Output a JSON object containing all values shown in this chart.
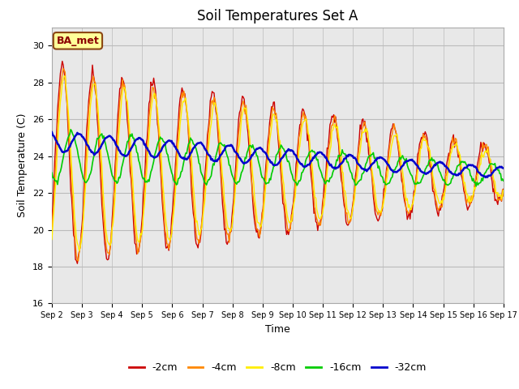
{
  "title": "Soil Temperatures Set A",
  "xlabel": "Time",
  "ylabel": "Soil Temperature (C)",
  "ylim": [
    16,
    31
  ],
  "annotation": "BA_met",
  "series_colors": [
    "#CC0000",
    "#FF8800",
    "#FFEE00",
    "#00CC00",
    "#0000CC"
  ],
  "series_labels": [
    "-2cm",
    "-4cm",
    "-8cm",
    "-16cm",
    "-32cm"
  ],
  "series_linewidths": [
    1.0,
    1.0,
    1.0,
    1.2,
    1.8
  ],
  "grid_color": "#bbbbbb",
  "figure_bg_color": "#ffffff",
  "plot_bg_color": "#e8e8e8",
  "n_points": 480,
  "start_day": 2,
  "end_day": 17,
  "xtick_labels": [
    "Sep 2",
    "Sep 3",
    "Sep 4",
    "Sep 5",
    "Sep 6",
    "Sep 7",
    "Sep 8",
    "Sep 9",
    "Sep 10",
    "Sep 11",
    "Sep 12",
    "Sep 13",
    "Sep 14",
    "Sep 15",
    "Sep 16",
    "Sep 17"
  ],
  "xtick_positions": [
    2,
    3,
    4,
    5,
    6,
    7,
    8,
    9,
    10,
    11,
    12,
    13,
    14,
    15,
    16,
    17
  ],
  "ytick_values": [
    16,
    18,
    20,
    22,
    24,
    26,
    28,
    30
  ],
  "title_fontsize": 12,
  "axis_label_fontsize": 9,
  "tick_fontsize": 8,
  "legend_fontsize": 9
}
